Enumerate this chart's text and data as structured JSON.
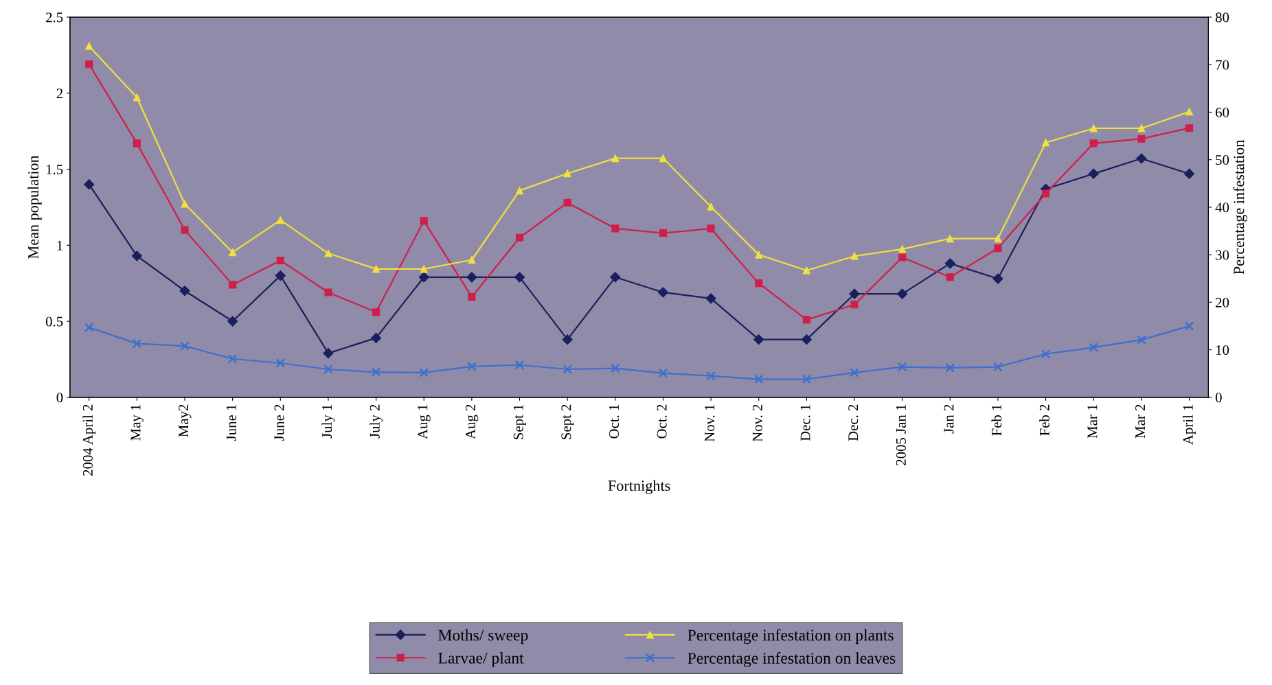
{
  "chart_data": {
    "type": "line",
    "xlabel": "Fortnights",
    "ylabel": "Mean population",
    "y2label": "Percentage infestation",
    "categories": [
      "2004 April 2",
      "May 1",
      "May2",
      "June 1",
      "June 2",
      "July 1",
      "July 2",
      "Aug 1",
      "Aug 2",
      "Sept 1",
      "Sept 2",
      "Oct. 1",
      "Oct. 2",
      "Nov. 1",
      "Nov. 2",
      "Dec. 1",
      "Dec. 2",
      "2005 Jan 1",
      "Jan 2",
      "Feb 1",
      "Feb 2",
      "Mar 1",
      "Mar 2",
      "April 1"
    ],
    "ylim": [
      0,
      2.5
    ],
    "yticks": [
      0,
      0.5,
      1,
      1.5,
      2,
      2.5
    ],
    "y2lim": [
      0,
      80
    ],
    "y2ticks": [
      0,
      10,
      20,
      30,
      40,
      50,
      60,
      70,
      80
    ],
    "grid": false,
    "legend": "bottom",
    "line_style": "solid",
    "series": [
      {
        "name": "Moths/ sweep",
        "color": "#1a1f5e",
        "marker": "diamond",
        "values": [
          1.4,
          0.93,
          0.7,
          0.5,
          0.8,
          0.29,
          0.39,
          0.79,
          0.79,
          0.79,
          0.38,
          0.79,
          0.69,
          0.65,
          0.38,
          0.38,
          0.68,
          0.68,
          0.88,
          0.78,
          1.37,
          1.47,
          1.57,
          1.47
        ]
      },
      {
        "name": "Larvae/ plant",
        "color": "#d01f4a",
        "marker": "square",
        "values": [
          2.19,
          1.67,
          1.1,
          0.74,
          0.9,
          0.69,
          0.56,
          1.16,
          0.66,
          1.05,
          1.28,
          1.11,
          1.08,
          1.11,
          0.75,
          0.51,
          0.61,
          0.92,
          0.79,
          0.98,
          1.34,
          1.67,
          1.7,
          1.77
        ]
      },
      {
        "name": "Percentage infestation on plants",
        "color": "#f0e040",
        "marker": "triangle",
        "axis": "y2",
        "values": [
          73.9,
          63.1,
          40.7,
          30.5,
          37.3,
          30.3,
          27.0,
          27.0,
          28.9,
          43.5,
          47.1,
          50.3,
          50.3,
          40.1,
          30.0,
          26.7,
          29.7,
          31.2,
          33.4,
          33.4,
          53.6,
          56.6,
          56.6,
          60.1
        ]
      },
      {
        "name": "Percentage infestation on leaves",
        "color": "#3b6fd0",
        "marker": "cross",
        "axis": "y2",
        "values": [
          14.7,
          11.3,
          10.8,
          8.1,
          7.2,
          5.9,
          5.3,
          5.2,
          6.5,
          6.8,
          5.9,
          6.1,
          5.1,
          4.5,
          3.8,
          3.8,
          5.2,
          6.4,
          6.2,
          6.4,
          9.1,
          10.5,
          12.1,
          15.0
        ]
      }
    ]
  }
}
